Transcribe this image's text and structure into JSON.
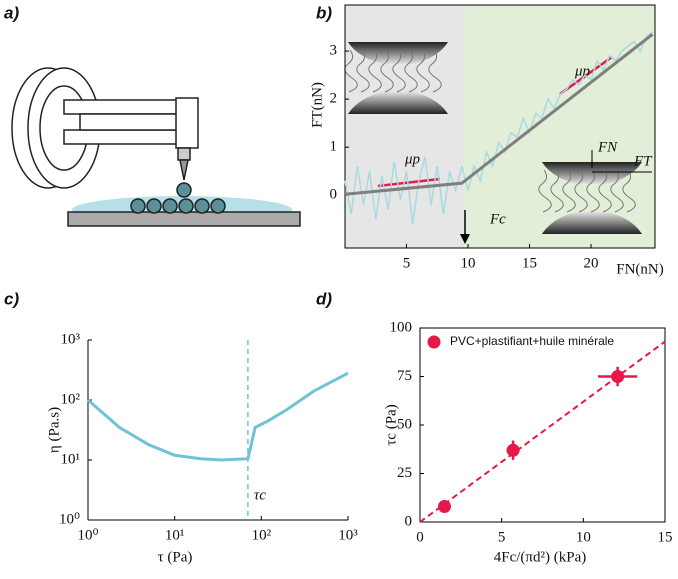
{
  "panel_labels": [
    "a)",
    "b)",
    "c)",
    "d)"
  ],
  "chart_data": [
    {
      "type": "line",
      "x_label": "FN(nN)",
      "y_label": "FT(nN)",
      "xlim": [
        0,
        25.2
      ],
      "ylim": [
        -1.1,
        3.96
      ],
      "xticks": [
        5,
        10,
        15,
        20
      ],
      "yticks": [
        0,
        1,
        2,
        3
      ],
      "shaded_regions": [
        [
          0,
          9.7
        ],
        [
          9.7,
          25.2
        ]
      ],
      "region_colors": [
        "#e6e6e6",
        "#e2eed8"
      ],
      "series": [
        {
          "color": "#a9d9e2",
          "x": [
            0,
            0.5,
            1,
            1.5,
            2,
            2.5,
            3,
            3.5,
            4,
            4.5,
            5,
            5.5,
            6,
            6.5,
            7,
            7.5,
            8,
            8.5,
            9,
            9.5,
            10,
            10.5,
            11,
            11.5,
            12,
            12.5,
            13,
            13.5,
            14,
            14.5,
            15,
            15.5,
            16,
            16.5,
            17,
            17.5,
            18,
            18.5,
            19,
            19.5,
            20,
            20.5,
            21,
            21.5,
            22,
            22.5,
            23,
            23.5,
            24,
            24.5,
            25
          ],
          "values": [
            0.3,
            -0.4,
            0.6,
            -0.2,
            0.5,
            -0.5,
            0.4,
            -0.3,
            0.7,
            -0.1,
            0.5,
            -0.6,
            0.3,
            0.8,
            -0.2,
            0.6,
            -0.4,
            0.5,
            0.1,
            0.6,
            0.1,
            0.6,
            0.3,
            0.9,
            0.6,
            1.1,
            0.9,
            1.3,
            1.2,
            1.6,
            1.3,
            1.7,
            1.6,
            2.0,
            1.8,
            2.1,
            2.2,
            2.4,
            2.3,
            2.5,
            2.4,
            2.8,
            2.6,
            2.9,
            2.8,
            3.0,
            3.1,
            3.2,
            3.0,
            3.3,
            3.4
          ]
        },
        {
          "color": "#7f7f7f",
          "x": [
            0,
            9.5,
            25
          ],
          "values": [
            0.02,
            0.25,
            3.35
          ]
        }
      ],
      "annotations": [
        "μp",
        "μp",
        "Fc",
        "FN",
        "FT"
      ]
    },
    {
      "type": "line",
      "log_x": true,
      "log_y": true,
      "x_label": "τ (Pa)",
      "y_label": "η (Pa.s)",
      "xlim": [
        1,
        1000
      ],
      "ylim": [
        1,
        1000
      ],
      "xticks": [
        {
          "value": 1,
          "label": "10⁰"
        },
        {
          "value": 10,
          "label": "10¹"
        },
        {
          "value": 100,
          "label": "10²"
        },
        {
          "value": 1000,
          "label": "10³"
        }
      ],
      "yticks": [
        {
          "value": 1,
          "label": "10⁰"
        },
        {
          "value": 10,
          "label": "10¹"
        },
        {
          "value": 100,
          "label": "10²"
        },
        {
          "value": 1000,
          "label": "10³"
        }
      ],
      "series": [
        {
          "color": "#6ec3d6",
          "x": [
            1,
            2.3,
            5,
            10,
            20,
            35,
            70,
            85,
            120,
            200,
            400,
            1000
          ],
          "values": [
            100,
            35,
            18,
            12,
            10.5,
            10,
            10.5,
            35,
            45,
            70,
            140,
            280
          ]
        }
      ],
      "vline": 70,
      "vline_label": "τc"
    },
    {
      "type": "scatter",
      "x_label": "4Fc/(πd²) (kPa)",
      "y_label": "τc (Pa)",
      "xlim": [
        0,
        15
      ],
      "ylim": [
        0,
        100
      ],
      "xticks": [
        0,
        5,
        10,
        15
      ],
      "yticks": [
        0,
        25,
        50,
        75,
        100
      ],
      "series": [
        {
          "name": "PVC+plastifiant+huile minérale",
          "color": "#e8174a",
          "x": [
            1.5,
            5.7,
            12.1
          ],
          "values": [
            8,
            37,
            75
          ],
          "x_errors": [
            0.3,
            0.4,
            1.2
          ],
          "y_errors": [
            2,
            5,
            5
          ]
        }
      ],
      "fit": {
        "x": [
          0,
          15
        ],
        "values": [
          0,
          93
        ]
      }
    }
  ]
}
